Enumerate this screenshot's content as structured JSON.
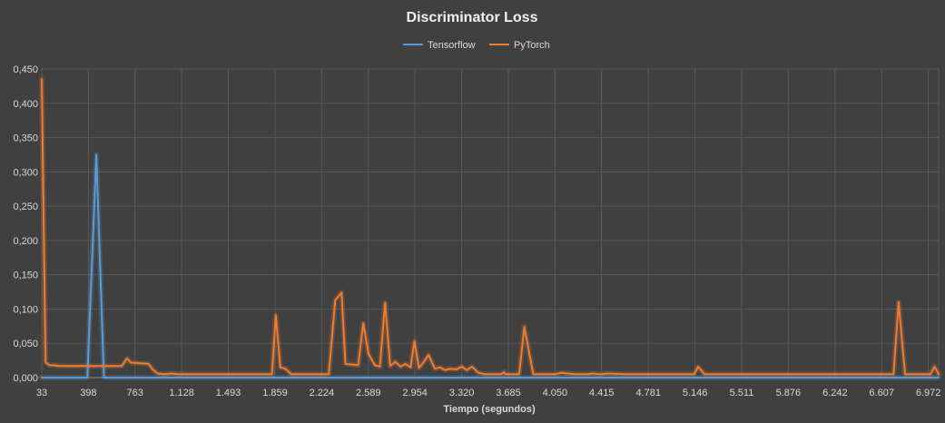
{
  "chart_data": {
    "type": "line",
    "title": "Discriminator Loss",
    "xlabel": "Tiempo (segundos)",
    "ylabel": "",
    "xlim": [
      33,
      7053
    ],
    "ylim": [
      0,
      0.45
    ],
    "y_ticks": [
      "0,000",
      "0,050",
      "0,100",
      "0,150",
      "0,200",
      "0,250",
      "0,300",
      "0,350",
      "0,400",
      "0,450"
    ],
    "y_tick_values": [
      0,
      0.05,
      0.1,
      0.15,
      0.2,
      0.25,
      0.3,
      0.35,
      0.4,
      0.45
    ],
    "x_ticks": [
      "33",
      "398",
      "763",
      "1.128",
      "1.493",
      "1.859",
      "2.224",
      "2.589",
      "2.954",
      "3.320",
      "3.685",
      "4.050",
      "4.415",
      "4.781",
      "5.146",
      "5.511",
      "5.876",
      "6.242",
      "6.607",
      "6.972"
    ],
    "x_tick_values": [
      33,
      398,
      763,
      1128,
      1493,
      1859,
      2224,
      2589,
      2954,
      3320,
      3685,
      4050,
      4415,
      4781,
      5146,
      5511,
      5876,
      6242,
      6607,
      6972
    ],
    "grid": true,
    "legend_position": "top-center",
    "series": [
      {
        "name": "Tensorflow",
        "color": "#5b9bd5",
        "x": [
          33,
          390,
          460,
          520,
          7053
        ],
        "y": [
          0,
          0,
          0.325,
          0,
          0
        ]
      },
      {
        "name": "PyTorch",
        "color": "#ed7d31",
        "x": [
          33,
          63,
          95,
          130,
          170,
          230,
          300,
          400,
          500,
          590,
          660,
          700,
          730,
          800,
          870,
          900,
          940,
          990,
          1050,
          1100,
          1200,
          1500,
          1800,
          1835,
          1865,
          1900,
          1940,
          1985,
          2100,
          2224,
          2280,
          2330,
          2380,
          2410,
          2470,
          2510,
          2550,
          2590,
          2640,
          2680,
          2720,
          2760,
          2800,
          2840,
          2880,
          2920,
          2950,
          2985,
          3020,
          3060,
          3110,
          3150,
          3190,
          3230,
          3280,
          3320,
          3360,
          3400,
          3450,
          3500,
          3550,
          3600,
          3630,
          3650,
          3660,
          3700,
          3770,
          3810,
          3880,
          3950,
          4050,
          4100,
          4200,
          4300,
          4350,
          4380,
          4415,
          4460,
          4600,
          4800,
          5000,
          5100,
          5140,
          5170,
          5220,
          5300,
          5500,
          5800,
          6100,
          6400,
          6650,
          6700,
          6740,
          6790,
          6850,
          6940,
          6990,
          7020,
          7053
        ],
        "y": [
          0.435,
          0.022,
          0.018,
          0.018,
          0.017,
          0.017,
          0.017,
          0.017,
          0.017,
          0.017,
          0.017,
          0.028,
          0.022,
          0.021,
          0.02,
          0.012,
          0.006,
          0.005,
          0.006,
          0.005,
          0.005,
          0.005,
          0.005,
          0.005,
          0.091,
          0.015,
          0.013,
          0.005,
          0.005,
          0.005,
          0.005,
          0.113,
          0.124,
          0.02,
          0.019,
          0.018,
          0.079,
          0.035,
          0.018,
          0.016,
          0.109,
          0.017,
          0.023,
          0.016,
          0.02,
          0.015,
          0.053,
          0.014,
          0.022,
          0.033,
          0.013,
          0.015,
          0.011,
          0.013,
          0.012,
          0.016,
          0.011,
          0.016,
          0.007,
          0.005,
          0.005,
          0.005,
          0.005,
          0.008,
          0.005,
          0.005,
          0.005,
          0.074,
          0.005,
          0.005,
          0.005,
          0.007,
          0.005,
          0.005,
          0.006,
          0.005,
          0.005,
          0.006,
          0.005,
          0.005,
          0.005,
          0.005,
          0.005,
          0.016,
          0.005,
          0.005,
          0.005,
          0.005,
          0.005,
          0.005,
          0.005,
          0.005,
          0.11,
          0.005,
          0.005,
          0.005,
          0.005,
          0.016,
          0.005
        ]
      }
    ]
  }
}
